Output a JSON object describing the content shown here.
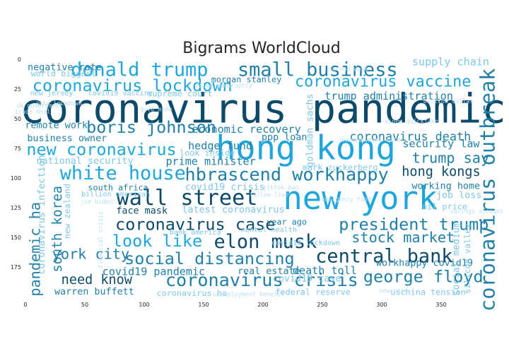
{
  "chart_data": {
    "type": "wordcloud",
    "title": "Bigrams WorldCloud",
    "xlabel": "",
    "ylabel": "",
    "xlim": [
      0,
      400
    ],
    "ylim": [
      200,
      0
    ],
    "x_ticks": [
      0,
      50,
      100,
      150,
      200,
      250,
      300,
      350
    ],
    "y_ticks": [
      0,
      25,
      50,
      75,
      100,
      125,
      150,
      175
    ],
    "grid": false,
    "colors": {
      "dark": "#0b4a6b",
      "mid": "#1f7fa8",
      "bright": "#1ea6dc",
      "light": "#7ec7e8",
      "pale": "#b9dff0"
    },
    "words": [
      {
        "text": "coronavirus pandemic",
        "x": 200,
        "y": 42,
        "size": 34,
        "color": "dark"
      },
      {
        "text": "hong kong",
        "x": 236,
        "y": 75,
        "size": 28,
        "color": "bright"
      },
      {
        "text": "new york",
        "x": 282,
        "y": 117,
        "size": 27,
        "color": "bright"
      },
      {
        "text": "coronavirus outbreak",
        "x": 389,
        "y": 110,
        "size": 17,
        "color": "mid",
        "vertical": true
      },
      {
        "text": "small business",
        "x": 246,
        "y": 9,
        "size": 16,
        "color": "mid"
      },
      {
        "text": "donald trump",
        "x": 96,
        "y": 9,
        "size": 16,
        "color": "bright"
      },
      {
        "text": "coronavirus vaccine",
        "x": 301,
        "y": 19,
        "size": 13,
        "color": "bright"
      },
      {
        "text": "coronavirus lockdown",
        "x": 90,
        "y": 22,
        "size": 14,
        "color": "bright"
      },
      {
        "text": "boris johnson",
        "x": 106,
        "y": 57,
        "size": 14,
        "color": "mid"
      },
      {
        "text": "new coronavirus",
        "x": 64,
        "y": 76,
        "size": 14,
        "color": "bright"
      },
      {
        "text": "white house",
        "x": 82,
        "y": 96,
        "size": 16,
        "color": "bright"
      },
      {
        "text": "hbrascend workhappy",
        "x": 220,
        "y": 97,
        "size": 15,
        "color": "mid"
      },
      {
        "text": "wall street",
        "x": 136,
        "y": 117,
        "size": 18,
        "color": "dark"
      },
      {
        "text": "coronavirus case",
        "x": 143,
        "y": 139,
        "size": 14,
        "color": "dark"
      },
      {
        "text": "president trump",
        "x": 327,
        "y": 139,
        "size": 14,
        "color": "mid"
      },
      {
        "text": "look like",
        "x": 111,
        "y": 153,
        "size": 14,
        "color": "bright"
      },
      {
        "text": "elon musk",
        "x": 202,
        "y": 154,
        "size": 16,
        "color": "dark"
      },
      {
        "text": "social distancing",
        "x": 155,
        "y": 168,
        "size": 14,
        "color": "mid"
      },
      {
        "text": "central bank",
        "x": 302,
        "y": 166,
        "size": 16,
        "color": "dark"
      },
      {
        "text": "coronavirus crisis",
        "x": 199,
        "y": 186,
        "size": 15,
        "color": "mid"
      },
      {
        "text": "george floyd",
        "x": 335,
        "y": 183,
        "size": 14,
        "color": "mid"
      },
      {
        "text": "stock market",
        "x": 318,
        "y": 150,
        "size": 12,
        "color": "mid"
      },
      {
        "text": "coronavirus death",
        "x": 324,
        "y": 65,
        "size": 10,
        "color": "mid"
      },
      {
        "text": "trump say",
        "x": 358,
        "y": 83,
        "size": 12,
        "color": "mid"
      },
      {
        "text": "hong kongs",
        "x": 350,
        "y": 95,
        "size": 11,
        "color": "dark"
      },
      {
        "text": "york city",
        "x": 55,
        "y": 164,
        "size": 12,
        "color": "mid"
      },
      {
        "text": "need know",
        "x": 60,
        "y": 186,
        "size": 11,
        "color": "dark"
      },
      {
        "text": "south korea",
        "x": 27,
        "y": 143,
        "size": 11,
        "color": "mid",
        "vertical": true
      },
      {
        "text": "pandemic ha",
        "x": 8,
        "y": 160,
        "size": 12,
        "color": "mid",
        "vertical": true
      },
      {
        "text": "trump administration",
        "x": 306,
        "y": 31,
        "size": 9,
        "color": "mid"
      },
      {
        "text": "supply chain",
        "x": 358,
        "y": 2,
        "size": 9,
        "color": "light"
      },
      {
        "text": "negative rate",
        "x": 33,
        "y": 7,
        "size": 8,
        "color": "mid"
      },
      {
        "text": "world biggest",
        "x": 32,
        "y": 12,
        "size": 7,
        "color": "light"
      },
      {
        "text": "new jersey",
        "x": 22,
        "y": 29,
        "size": 6,
        "color": "light"
      },
      {
        "text": "morgan stanley",
        "x": 186,
        "y": 17,
        "size": 7,
        "color": "mid"
      },
      {
        "text": "remote work",
        "x": 26,
        "y": 56,
        "size": 8,
        "color": "mid"
      },
      {
        "text": "business owner",
        "x": 35,
        "y": 67,
        "size": 8,
        "color": "mid"
      },
      {
        "text": "economic recovery",
        "x": 186,
        "y": 59,
        "size": 9,
        "color": "mid"
      },
      {
        "text": "hedge fund",
        "x": 164,
        "y": 73,
        "size": 9,
        "color": "mid"
      },
      {
        "text": "ppp loan",
        "x": 218,
        "y": 66,
        "size": 8,
        "color": "mid"
      },
      {
        "text": "prime minister",
        "x": 156,
        "y": 86,
        "size": 9,
        "color": "mid"
      },
      {
        "text": "national security",
        "x": 50,
        "y": 86,
        "size": 8,
        "color": "light"
      },
      {
        "text": "security law",
        "x": 350,
        "y": 71,
        "size": 9,
        "color": "mid"
      },
      {
        "text": "working home",
        "x": 354,
        "y": 107,
        "size": 8,
        "color": "mid"
      },
      {
        "text": "south africa",
        "x": 78,
        "y": 108,
        "size": 7,
        "color": "mid"
      },
      {
        "text": "covid19 crisis",
        "x": 168,
        "y": 108,
        "size": 8,
        "color": "light"
      },
      {
        "text": "job loss",
        "x": 365,
        "y": 115,
        "size": 8,
        "color": "light"
      },
      {
        "text": "oil price",
        "x": 353,
        "y": 124,
        "size": 7,
        "color": "light"
      },
      {
        "text": "face mask",
        "x": 98,
        "y": 128,
        "size": 8,
        "color": "dark"
      },
      {
        "text": "latest coronavirus",
        "x": 175,
        "y": 127,
        "size": 8,
        "color": "light"
      },
      {
        "text": "year ago",
        "x": 220,
        "y": 137,
        "size": 7,
        "color": "mid"
      },
      {
        "text": "covid19 pandemic",
        "x": 108,
        "y": 179,
        "size": 9,
        "color": "mid"
      },
      {
        "text": "real estate",
        "x": 205,
        "y": 179,
        "size": 8,
        "color": "mid"
      },
      {
        "text": "death toll",
        "x": 252,
        "y": 178,
        "size": 9,
        "color": "mid"
      },
      {
        "text": "workhappy covid19",
        "x": 336,
        "y": 172,
        "size": 8,
        "color": "mid"
      },
      {
        "text": "warren buffett",
        "x": 58,
        "y": 196,
        "size": 8,
        "color": "mid"
      },
      {
        "text": "coronavirus ha",
        "x": 140,
        "y": 197,
        "size": 7,
        "color": "light"
      },
      {
        "text": "federal reserve",
        "x": 242,
        "y": 196,
        "size": 7,
        "color": "light"
      },
      {
        "text": "uschina tension",
        "x": 339,
        "y": 196,
        "size": 7,
        "color": "light"
      },
      {
        "text": "covid19 case",
        "x": 237,
        "y": 185,
        "size": 8,
        "color": "light"
      },
      {
        "text": "social medium",
        "x": 363,
        "y": 168,
        "size": 8,
        "color": "light",
        "vertical": true
      },
      {
        "text": "silicon valley",
        "x": 372,
        "y": 168,
        "size": 7,
        "color": "light",
        "vertical": true
      },
      {
        "text": "new zealand",
        "x": 35,
        "y": 128,
        "size": 7,
        "color": "light",
        "vertical": true
      },
      {
        "text": "coronavirus infection",
        "x": 14,
        "y": 131,
        "size": 8,
        "color": "light",
        "vertical": true
      },
      {
        "text": "goldman sachs",
        "x": 240,
        "y": 60,
        "size": 8,
        "color": "light",
        "vertical": true
      },
      {
        "text": "mark zuckerberg",
        "x": 265,
        "y": 91,
        "size": 7,
        "color": "light"
      },
      {
        "text": "supreme court",
        "x": 130,
        "y": 29,
        "size": 7,
        "color": "light"
      },
      {
        "text": "covid19 vaccine",
        "x": 80,
        "y": 29,
        "size": 6,
        "color": "light"
      },
      {
        "text": "look inside",
        "x": 153,
        "y": 79,
        "size": 7,
        "color": "light"
      },
      {
        "text": "mental health",
        "x": 205,
        "y": 144,
        "size": 6,
        "color": "light"
      },
      {
        "text": "bank america",
        "x": 143,
        "y": 146,
        "size": 6,
        "color": "light"
      },
      {
        "text": "covid19 lockdown",
        "x": 236,
        "y": 155,
        "size": 6,
        "color": "light"
      },
      {
        "text": "billion american",
        "x": 76,
        "y": 114,
        "size": 6,
        "color": "light"
      },
      {
        "text": "uk government",
        "x": 12,
        "y": 39,
        "size": 5,
        "color": "pale"
      },
      {
        "text": "trade deal",
        "x": 6,
        "y": 44,
        "size": 5,
        "color": "pale"
      },
      {
        "text": "filed bankruptcy",
        "x": 167,
        "y": 22,
        "size": 5,
        "color": "pale"
      },
      {
        "text": "unemployment rate",
        "x": 290,
        "y": 68,
        "size": 5,
        "color": "pale"
      },
      {
        "text": "billion dollar",
        "x": 356,
        "y": 35,
        "size": 5,
        "color": "pale"
      },
      {
        "text": "unemployment benefit",
        "x": 188,
        "y": 198,
        "size": 5,
        "color": "pale"
      },
      {
        "text": "follow live",
        "x": 205,
        "y": 114,
        "size": 5,
        "color": "pale"
      },
      {
        "text": "joe biden",
        "x": 60,
        "y": 120,
        "size": 5,
        "color": "pale"
      },
      {
        "text": "financial crisis",
        "x": 63,
        "y": 152,
        "size": 5,
        "color": "pale",
        "vertical": true
      },
      {
        "text": "savings account",
        "x": 380,
        "y": 128,
        "size": 5,
        "color": "pale"
      },
      {
        "text": "second wave",
        "x": 272,
        "y": 8,
        "size": 5,
        "color": "pale"
      },
      {
        "text": "video quickfake",
        "x": 325,
        "y": 52,
        "size": 5,
        "color": "pale"
      },
      {
        "text": "anti lockdown",
        "x": 28,
        "y": 37,
        "size": 5,
        "color": "pale"
      },
      {
        "text": "new case",
        "x": 310,
        "y": 195,
        "size": 5,
        "color": "pale"
      },
      {
        "text": "emergency fund",
        "x": 270,
        "y": 118,
        "size": 5,
        "color": "pale"
      },
      {
        "text": "gold mine",
        "x": 110,
        "y": 42,
        "size": 5,
        "color": "pale"
      },
      {
        "text": "tiktok ban",
        "x": 215,
        "y": 108,
        "size": 5,
        "color": "pale"
      }
    ]
  }
}
